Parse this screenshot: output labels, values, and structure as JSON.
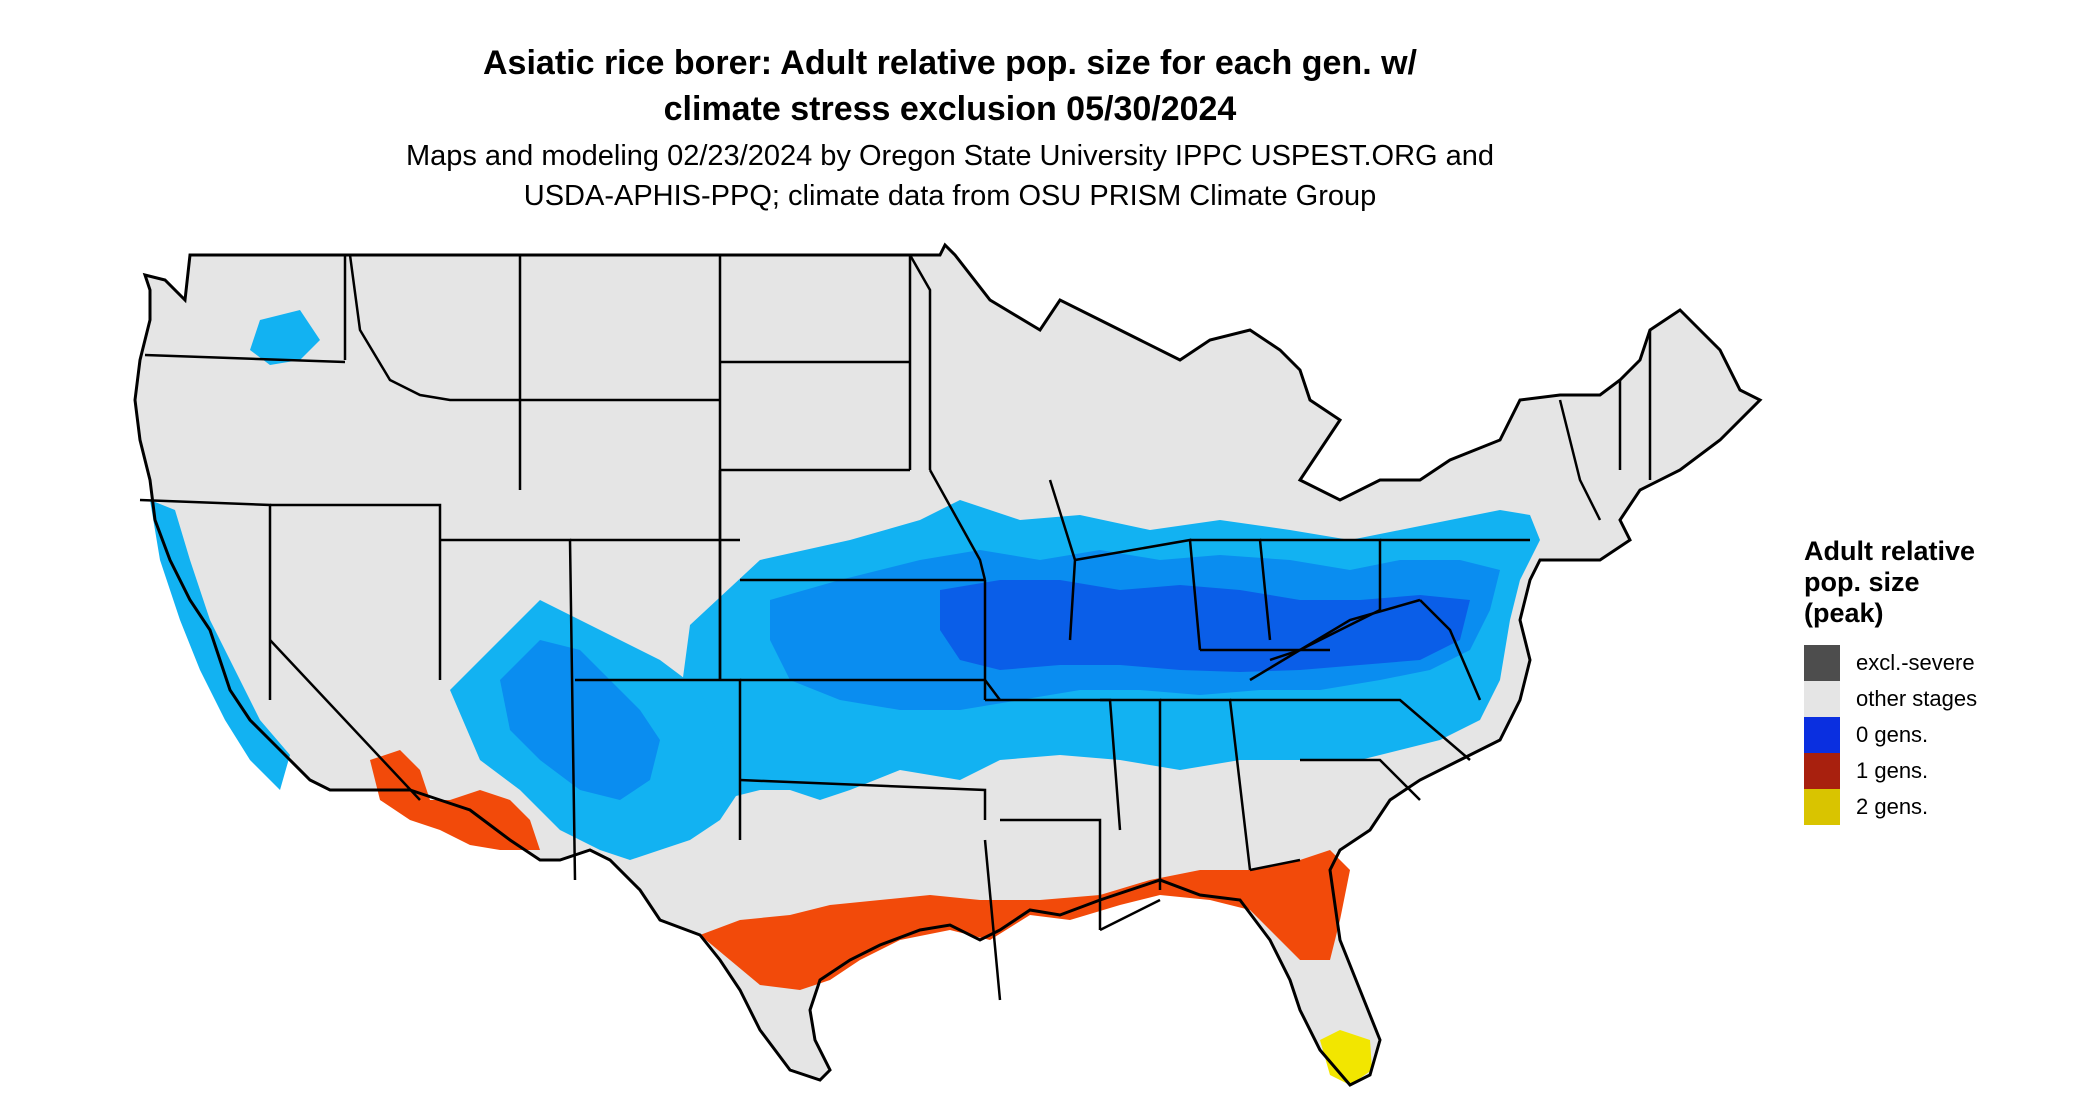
{
  "title": {
    "line1": "Asiatic rice borer: Adult relative pop. size for each gen. w/",
    "line2": "climate stress exclusion 05/30/2024"
  },
  "subtitle": {
    "line1": "Maps and modeling 02/23/2024 by Oregon State University IPPC USPEST.ORG and",
    "line2": "USDA-APHIS-PPQ; climate data from OSU PRISM Climate Group"
  },
  "legend": {
    "title_line1": "Adult relative",
    "title_line2": "pop. size",
    "title_line3": "(peak)",
    "items": [
      {
        "label": "excl.-severe",
        "color": "#4d4d4d"
      },
      {
        "label": "other stages",
        "color": "#e5e5e5"
      },
      {
        "label": "0 gens.",
        "color": "#0a2fe0"
      },
      {
        "label": "1 gens.",
        "color": "#a8200e"
      },
      {
        "label": "2 gens.",
        "color": "#d9c400"
      }
    ]
  },
  "map_colors": {
    "land": "#e5e5e5",
    "border": "#000000",
    "zone_light_blue": "#12b2f2",
    "zone_mid_blue": "#0a8df0",
    "zone_dark_blue": "#0a5ee8",
    "zone_orange_red": "#f24a0a",
    "zone_red": "#d92e0a",
    "zone_yellow": "#f2e600"
  }
}
